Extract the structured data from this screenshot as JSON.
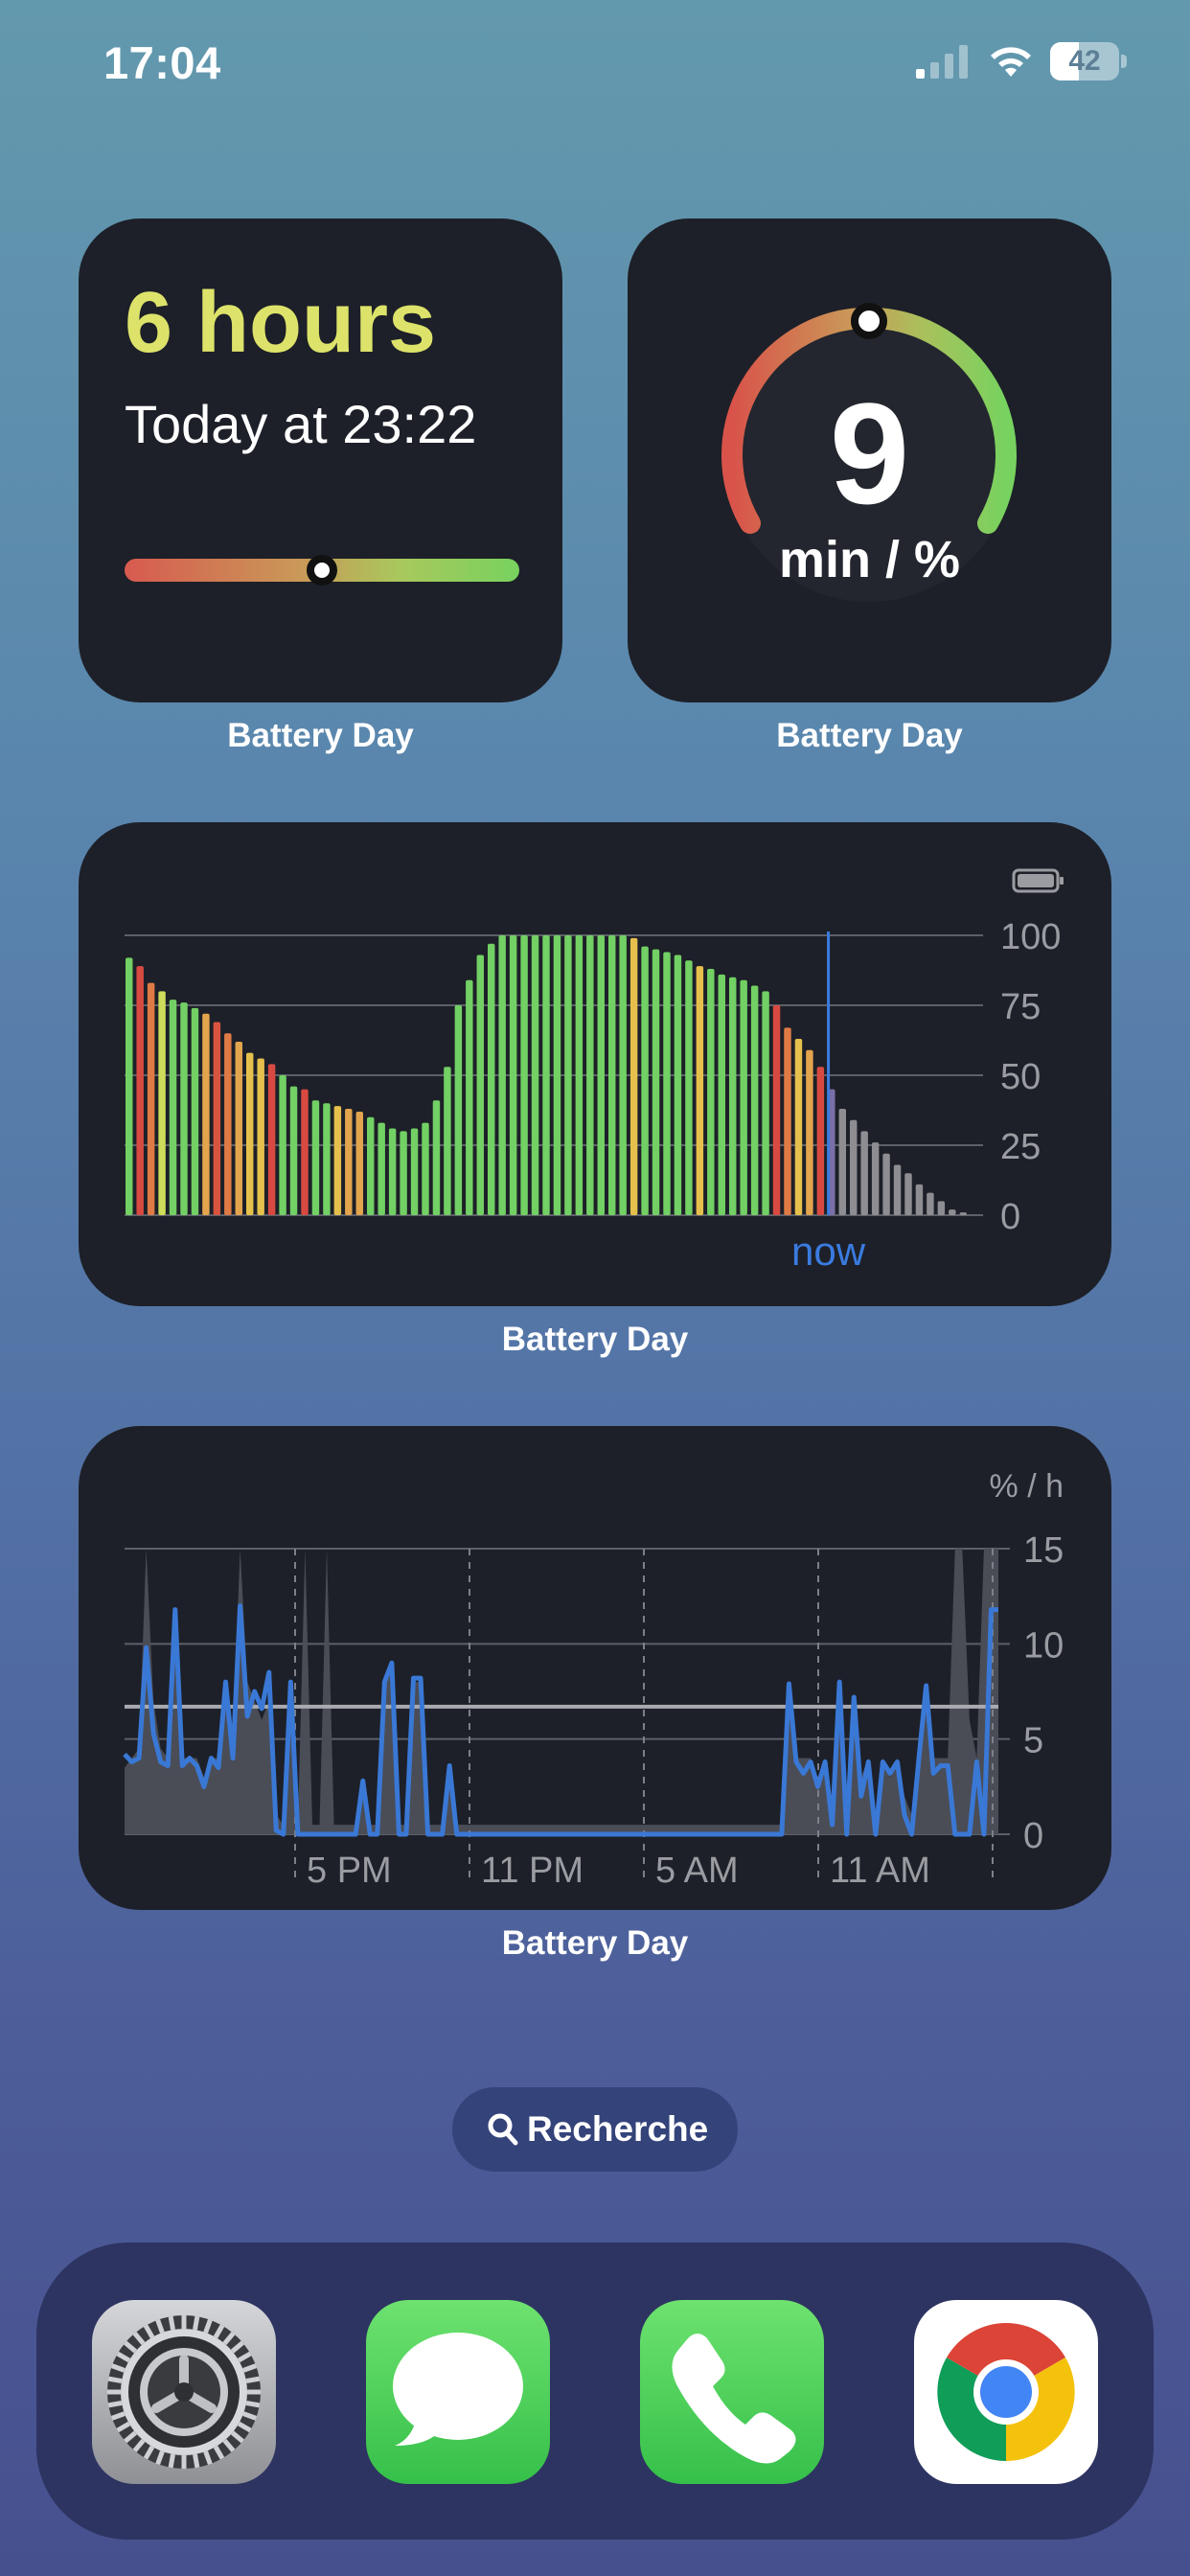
{
  "status_bar": {
    "time": "17:04",
    "battery_level": "42",
    "battery_fraction": 0.42
  },
  "widget_hours": {
    "duration": "6 hours",
    "until": "Today at 23:22",
    "position_fraction": 0.5,
    "label": "Battery Day",
    "colors": {
      "duration": "#dde36a"
    }
  },
  "widget_rate": {
    "value": "9",
    "unit": "min / %",
    "position_fraction": 0.5,
    "label": "Battery Day"
  },
  "chart_data": [
    {
      "type": "bar",
      "title": "",
      "ylim": [
        0,
        100
      ],
      "ytick_labels": [
        "100",
        "75",
        "50",
        "25",
        "0"
      ],
      "now_label": "now",
      "label": "Battery Day",
      "icon": "battery-icon",
      "values": [
        92,
        89,
        83,
        80,
        77,
        76,
        74,
        72,
        69,
        65,
        62,
        58,
        56,
        54,
        50,
        46,
        45,
        41,
        40,
        39,
        38,
        37,
        35,
        33,
        31,
        30,
        31,
        33,
        41,
        53,
        75,
        84,
        93,
        97,
        100,
        100,
        100,
        100,
        100,
        100,
        100,
        100,
        100,
        100,
        100,
        100,
        99,
        96,
        95,
        94,
        93,
        91,
        89,
        88,
        86,
        85,
        84,
        82,
        80,
        75,
        67,
        63,
        59,
        53,
        45,
        38,
        34,
        30,
        26,
        22,
        18,
        15,
        11,
        8,
        5,
        2,
        1
      ],
      "bar_colors": [
        "#72d064",
        "#d84a41",
        "#e07a45",
        "#cddc5a",
        "#72d064",
        "#72d064",
        "#72d064",
        "#e3a44e",
        "#d8543f",
        "#e07a45",
        "#e3a44e",
        "#e6c04c",
        "#e6c04c",
        "#d84a41",
        "#72d064",
        "#72d064",
        "#d84a41",
        "#72d064",
        "#72d064",
        "#e6c04c",
        "#e3a44e",
        "#e3a44e",
        "#72d064",
        "#72d064",
        "#72d064",
        "#72d064",
        "#72d064",
        "#72d064",
        "#72d064",
        "#72d064",
        "#72d064",
        "#72d064",
        "#72d064",
        "#72d064",
        "#72d064",
        "#72d064",
        "#72d064",
        "#72d064",
        "#72d064",
        "#72d064",
        "#72d064",
        "#72d064",
        "#72d064",
        "#72d064",
        "#72d064",
        "#72d064",
        "#e6c04c",
        "#72d064",
        "#72d064",
        "#72d064",
        "#72d064",
        "#72d064",
        "#e6c04c",
        "#72d064",
        "#72d064",
        "#72d064",
        "#72d064",
        "#72d064",
        "#72d064",
        "#d84a41",
        "#e07a45",
        "#e6c04c",
        "#e3a44e",
        "#d84a41",
        "#7a6fa8",
        "#8d8d92",
        "#8d8d92",
        "#8d8d92",
        "#8d8d92",
        "#8d8d92",
        "#8d8d92",
        "#8d8d92",
        "#8d8d92",
        "#8d8d92",
        "#8d8d92",
        "#8d8d92",
        "#8d8d92"
      ],
      "now_index": 64
    },
    {
      "type": "area",
      "title": "",
      "unit_label": "% / h",
      "ylim": [
        0,
        15
      ],
      "ytick_labels": [
        "15",
        "10",
        "5",
        "0"
      ],
      "xtick_labels": [
        "5 PM",
        "11 PM",
        "5 AM",
        "11 AM"
      ],
      "average": 6.7,
      "label": "Battery Day",
      "line": [
        4.2,
        3.8,
        4.0,
        9.8,
        5.3,
        3.8,
        3.6,
        11.8,
        3.6,
        4.0,
        3.6,
        2.5,
        4.0,
        3.5,
        8.0,
        4.0,
        12.0,
        6.2,
        7.5,
        6.6,
        8.5,
        0.2,
        0.0,
        8.0,
        0.0,
        0.0,
        0.0,
        0.0,
        0.0,
        0.0,
        0.0,
        0.0,
        0.0,
        2.8,
        0.0,
        0.0,
        8.0,
        9.0,
        0.0,
        0.0,
        8.2,
        8.2,
        0.0,
        0.0,
        0.0,
        3.6,
        0.0,
        0.0,
        0.0,
        0.0,
        0.0,
        0.0,
        0.0,
        0.0,
        0.0,
        0.0,
        0.0,
        0.0,
        0.0,
        0.0,
        0.0,
        0.0,
        0.0,
        0.0,
        0.0,
        0.0,
        0.0,
        0.0,
        0.0,
        0.0,
        0.0,
        0.0,
        0.0,
        0.0,
        0.0,
        0.0,
        0.0,
        0.0,
        0.0,
        0.0,
        0.0,
        0.0,
        0.0,
        0.0,
        0.0,
        0.0,
        0.0,
        0.0,
        0.0,
        0.0,
        0.0,
        0.0,
        7.9,
        3.8,
        3.2,
        3.8,
        2.5,
        3.8,
        0.5,
        8.0,
        0.0,
        7.2,
        2.0,
        3.8,
        0.0,
        3.8,
        3.2,
        3.8,
        1.0,
        0.0,
        4.0,
        7.8,
        3.2,
        3.6,
        3.6,
        0.0,
        0.0,
        0.0,
        3.8,
        0.0,
        11.8,
        11.8
      ],
      "area": [
        3.5,
        4.0,
        4.5,
        15.0,
        7.0,
        4.5,
        4.0,
        10.0,
        4.0,
        4.0,
        4.0,
        3.0,
        4.0,
        4.0,
        8.0,
        5.0,
        15.0,
        8.0,
        7.0,
        6.0,
        7.0,
        1.0,
        0.5,
        7.0,
        0.5,
        15.0,
        0.5,
        0.5,
        15.0,
        0.5,
        0.5,
        0.5,
        0.5,
        3.0,
        0.5,
        0.5,
        8.0,
        9.0,
        0.5,
        0.5,
        8.0,
        8.0,
        0.5,
        0.5,
        0.5,
        3.5,
        0.5,
        0.5,
        0.5,
        0.5,
        0.5,
        0.5,
        0.5,
        0.5,
        0.5,
        0.5,
        0.5,
        0.5,
        0.5,
        0.5,
        0.5,
        0.5,
        0.5,
        0.5,
        0.5,
        0.5,
        0.5,
        0.5,
        0.5,
        0.5,
        0.5,
        0.5,
        0.5,
        0.5,
        0.5,
        0.5,
        0.5,
        0.5,
        0.5,
        0.5,
        0.5,
        0.5,
        0.5,
        0.5,
        0.5,
        0.5,
        0.5,
        0.5,
        0.5,
        0.5,
        0.5,
        0.5,
        8.0,
        4.0,
        4.0,
        4.0,
        3.0,
        4.0,
        1.0,
        8.0,
        1.0,
        7.0,
        3.0,
        4.0,
        1.0,
        4.0,
        3.0,
        4.0,
        2.0,
        1.0,
        5.0,
        8.0,
        4.0,
        4.0,
        4.0,
        15.0,
        15.0,
        6.0,
        4.0,
        15.0,
        15.0,
        15.0
      ]
    }
  ],
  "search": {
    "label": "Recherche"
  },
  "dock": {
    "apps": [
      {
        "name": "Settings",
        "icon": "settings-gear-icon"
      },
      {
        "name": "Messages",
        "icon": "message-bubble-icon"
      },
      {
        "name": "Phone",
        "icon": "phone-handset-icon"
      },
      {
        "name": "Chrome",
        "icon": "chrome-logo-icon"
      }
    ]
  },
  "colors": {
    "widget_bg": "#1d2028",
    "line_blue": "#3a78d6",
    "now_blue": "#3a7be0",
    "grid": "#6b6e76"
  }
}
